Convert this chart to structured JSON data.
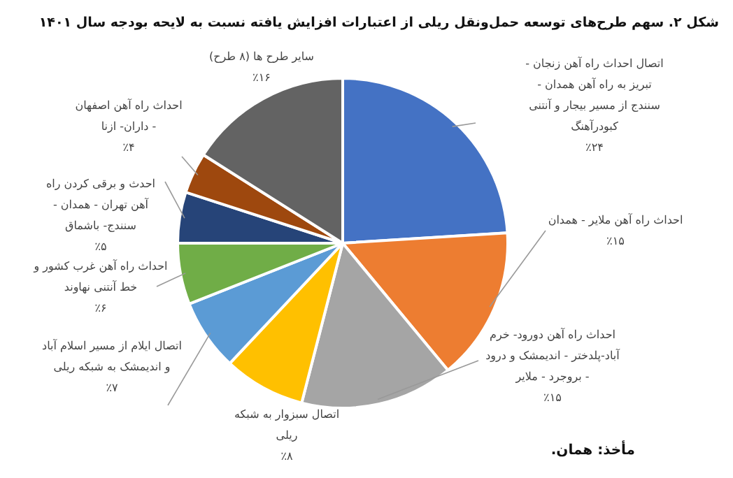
{
  "chart_data": {
    "type": "pie",
    "title": "شکل ۲. سهم طرح‌های توسعه حمل‌ونقل ریلی از اعتبارات افزایش یافته نسبت به لایحه بودجه سال ۱۴۰۱",
    "categories": [
      "اتصال احداث راه آهن زنجان - تبریز به راه آهن همدان - سنندج از مسیر بیجار و آنتنی کبودرآهنگ",
      "احداث راه آهن ملایر - همدان",
      "احداث راه آهن دورود- خرم آباد-پلدختر - اندیمشک و درود - بروجرد - ملایر",
      "اتصال سبزوار به شبکه ریلی",
      "اتصال ایلام از مسیر اسلام آباد و اندیمشک به شبکه ریلی",
      "احداث راه آهن غرب کشور و خط آنتنی نهاوند",
      "احدث و برقی کردن راه آهن تهران - همدان - سنندج- باشماق",
      "احداث راه آهن اصفهان - داران- ازنا",
      "سایر طرح ها (۸ طرح)"
    ],
    "values": [
      24,
      15,
      15,
      8,
      7,
      6,
      5,
      4,
      16
    ],
    "value_labels": [
      "٪۲۴",
      "٪۱۵",
      "٪۱۵",
      "٪۸",
      "٪۷",
      "٪۶",
      "٪۵",
      "٪۴",
      "٪۱۶"
    ],
    "colors": [
      "#4472c4",
      "#ed7d31",
      "#a5a5a5",
      "#ffc000",
      "#5b9bd5",
      "#70ad47",
      "#264478",
      "#9e480e",
      "#636363"
    ],
    "annotations": [
      "مأخذ: همان."
    ]
  }
}
